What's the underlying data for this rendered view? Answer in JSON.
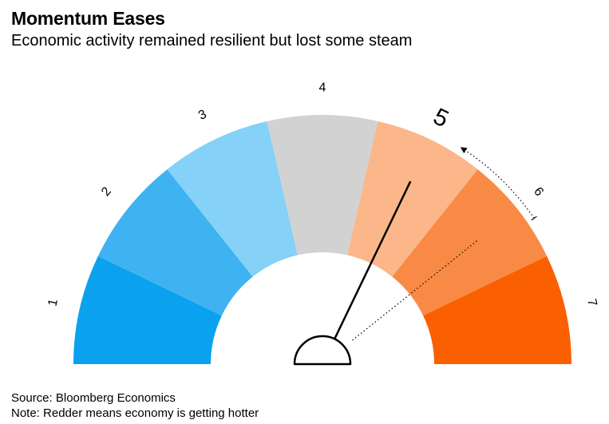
{
  "chart_data": {
    "type": "gauge",
    "title": "Momentum Eases",
    "subtitle": "Economic activity remained resilient but lost some steam",
    "scale": {
      "min": 1,
      "max": 7,
      "segments": [
        {
          "label": "1",
          "value": 1,
          "color": "#0aa2ef"
        },
        {
          "label": "2",
          "value": 2,
          "color": "#3fb2f1"
        },
        {
          "label": "3",
          "value": 3,
          "color": "#85d1f8"
        },
        {
          "label": "4",
          "value": 4,
          "color": "#d2d2d2"
        },
        {
          "label": "5",
          "value": 5,
          "color": "#fbb68a"
        },
        {
          "label": "6",
          "value": 6,
          "color": "#f98a45"
        },
        {
          "label": "7",
          "value": 7,
          "color": "#fa6000"
        }
      ]
    },
    "current": {
      "value": 5,
      "label": "5"
    },
    "previous": {
      "value": 6
    }
  },
  "footer": {
    "source": "Source: Bloomberg Economics",
    "note": "Note: Redder means economy is getting hotter"
  }
}
